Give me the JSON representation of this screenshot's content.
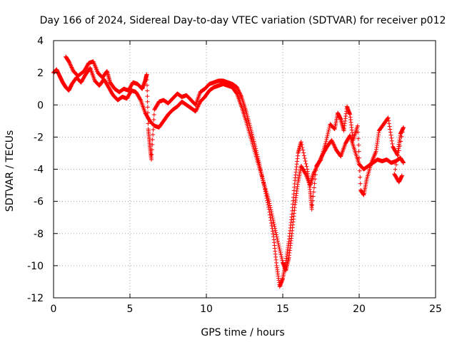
{
  "chart_data": {
    "type": "scatter",
    "title": "Day 166 of 2024, Sidereal Day-to-day VTEC variation (SDTVAR) for receiver p012",
    "xlabel": "GPS time / hours",
    "ylabel": "SDTVAR / TECUs",
    "xlim": [
      0,
      25
    ],
    "ylim": [
      -12,
      4
    ],
    "x_ticks": [
      "0",
      "5",
      "10",
      "15",
      "20",
      "25"
    ],
    "y_ticks": [
      "-12",
      "-10",
      "-8",
      "-6",
      "-4",
      "-2",
      "0",
      "2",
      "4"
    ],
    "grid": true,
    "marker": "+",
    "color": "#ff0000",
    "series": [
      {
        "name": "",
        "points": [
          [
            0.0,
            2.0
          ],
          [
            0.2,
            2.2
          ],
          [
            0.4,
            1.8
          ],
          [
            0.6,
            1.4
          ],
          [
            0.8,
            1.1
          ],
          [
            1.0,
            0.9
          ],
          [
            1.2,
            1.3
          ],
          [
            1.5,
            1.7
          ],
          [
            1.8,
            1.4
          ],
          [
            2.1,
            1.9
          ],
          [
            2.4,
            2.3
          ],
          [
            2.7,
            1.5
          ],
          [
            3.0,
            1.2
          ],
          [
            3.3,
            1.6
          ],
          [
            3.6,
            1.1
          ],
          [
            3.9,
            0.6
          ],
          [
            4.2,
            0.3
          ],
          [
            4.5,
            0.5
          ],
          [
            4.8,
            0.4
          ],
          [
            5.1,
            0.9
          ],
          [
            5.4,
            0.8
          ],
          [
            5.7,
            0.3
          ],
          [
            6.0,
            -0.5
          ],
          [
            6.3,
            -1.0
          ],
          [
            6.6,
            -1.3
          ],
          [
            6.9,
            -1.4
          ],
          [
            7.2,
            -1.0
          ],
          [
            7.5,
            -0.6
          ],
          [
            7.8,
            -0.3
          ],
          [
            8.1,
            -0.1
          ],
          [
            8.4,
            0.2
          ],
          [
            8.7,
            0.0
          ],
          [
            9.0,
            -0.2
          ],
          [
            9.3,
            -0.4
          ],
          [
            9.6,
            0.2
          ],
          [
            9.9,
            0.5
          ],
          [
            10.2,
            0.9
          ],
          [
            10.5,
            1.1
          ],
          [
            10.8,
            1.2
          ],
          [
            11.1,
            1.3
          ],
          [
            11.4,
            1.2
          ],
          [
            11.7,
            1.1
          ],
          [
            12.0,
            0.7
          ],
          [
            12.3,
            -0.1
          ],
          [
            12.6,
            -1.0
          ],
          [
            12.9,
            -2.0
          ],
          [
            13.2,
            -3.0
          ],
          [
            13.5,
            -4.0
          ],
          [
            13.8,
            -5.0
          ],
          [
            14.1,
            -6.0
          ],
          [
            14.4,
            -7.3
          ],
          [
            14.7,
            -8.6
          ],
          [
            15.0,
            -9.8
          ],
          [
            15.2,
            -10.3
          ],
          [
            15.4,
            -9.5
          ],
          [
            15.6,
            -8.0
          ],
          [
            15.8,
            -6.2
          ],
          [
            16.0,
            -4.8
          ],
          [
            16.2,
            -3.8
          ],
          [
            16.5,
            -4.3
          ],
          [
            16.8,
            -5.0
          ],
          [
            17.0,
            -4.3
          ],
          [
            17.3,
            -3.7
          ],
          [
            17.6,
            -3.1
          ],
          [
            17.9,
            -2.6
          ],
          [
            18.2,
            -2.2
          ],
          [
            18.5,
            -2.8
          ],
          [
            18.8,
            -3.2
          ],
          [
            19.1,
            -2.4
          ],
          [
            19.4,
            -1.9
          ],
          [
            19.7,
            -2.8
          ],
          [
            20.0,
            -3.7
          ],
          [
            20.3,
            -4.0
          ],
          [
            20.6,
            -3.8
          ],
          [
            20.9,
            -3.6
          ],
          [
            21.2,
            -3.4
          ],
          [
            21.5,
            -3.5
          ],
          [
            21.8,
            -3.4
          ],
          [
            22.1,
            -3.6
          ],
          [
            22.4,
            -3.5
          ],
          [
            22.7,
            -3.3
          ],
          [
            22.9,
            -3.6
          ]
        ]
      },
      {
        "name": "",
        "points": [
          [
            0.8,
            3.0
          ],
          [
            1.0,
            2.7
          ],
          [
            1.3,
            2.1
          ],
          [
            1.6,
            1.8
          ],
          [
            2.0,
            2.1
          ],
          [
            2.3,
            2.6
          ],
          [
            2.6,
            2.7
          ],
          [
            2.9,
            2.0
          ],
          [
            3.2,
            1.7
          ],
          [
            3.5,
            2.1
          ],
          [
            3.7,
            1.4
          ],
          [
            4.0,
            1.0
          ],
          [
            4.3,
            0.8
          ],
          [
            4.6,
            1.0
          ],
          [
            4.9,
            0.9
          ],
          [
            5.2,
            1.4
          ],
          [
            5.5,
            1.3
          ],
          [
            5.8,
            1.0
          ],
          [
            6.0,
            1.5
          ],
          [
            6.1,
            1.9
          ],
          [
            6.2,
            -1.5
          ],
          [
            6.3,
            -2.5
          ],
          [
            6.4,
            -3.4
          ],
          [
            6.6,
            -0.3
          ],
          [
            6.9,
            0.2
          ],
          [
            7.2,
            0.3
          ],
          [
            7.5,
            0.1
          ],
          [
            7.8,
            0.4
          ],
          [
            8.1,
            0.7
          ],
          [
            8.4,
            0.5
          ],
          [
            8.7,
            0.6
          ],
          [
            9.0,
            0.3
          ],
          [
            9.3,
            0.0
          ],
          [
            9.6,
            0.8
          ],
          [
            9.9,
            1.0
          ],
          [
            10.2,
            1.3
          ],
          [
            10.5,
            1.4
          ],
          [
            10.8,
            1.5
          ],
          [
            11.1,
            1.5
          ],
          [
            11.4,
            1.4
          ],
          [
            11.7,
            1.3
          ],
          [
            12.0,
            1.1
          ],
          [
            12.3,
            0.5
          ],
          [
            12.6,
            -0.4
          ],
          [
            12.9,
            -1.5
          ],
          [
            13.2,
            -2.6
          ],
          [
            13.5,
            -3.8
          ],
          [
            13.8,
            -5.1
          ],
          [
            14.1,
            -6.5
          ],
          [
            14.4,
            -8.2
          ],
          [
            14.6,
            -10.0
          ],
          [
            14.8,
            -11.3
          ],
          [
            15.0,
            -10.8
          ],
          [
            15.2,
            -9.8
          ],
          [
            15.4,
            -8.5
          ],
          [
            15.6,
            -6.8
          ],
          [
            15.8,
            -4.7
          ],
          [
            16.0,
            -3.0
          ],
          [
            16.2,
            -2.3
          ],
          [
            16.6,
            -4.0
          ],
          [
            16.8,
            -5.4
          ],
          [
            16.9,
            -6.5
          ],
          [
            17.2,
            -3.8
          ],
          [
            17.5,
            -3.4
          ],
          [
            17.8,
            -2.4
          ],
          [
            18.1,
            -1.2
          ],
          [
            18.4,
            -1.5
          ],
          [
            18.6,
            -0.5
          ],
          [
            18.8,
            -0.9
          ],
          [
            19.0,
            -1.6
          ],
          [
            19.2,
            -0.1
          ],
          [
            19.4,
            -0.6
          ],
          [
            19.6,
            -2.2
          ],
          [
            19.9,
            -1.3
          ],
          [
            20.1,
            -5.3
          ],
          [
            20.3,
            -5.6
          ],
          [
            20.5,
            -4.6
          ],
          [
            20.8,
            -3.6
          ],
          [
            21.1,
            -2.9
          ],
          [
            21.3,
            -1.6
          ],
          [
            21.6,
            -1.2
          ],
          [
            21.9,
            -0.8
          ],
          [
            22.2,
            -2.6
          ],
          [
            22.5,
            -3.1
          ],
          [
            22.7,
            -1.8
          ],
          [
            22.9,
            -1.4
          ],
          [
            22.3,
            -4.3
          ],
          [
            22.6,
            -4.8
          ],
          [
            22.8,
            -4.4
          ]
        ]
      }
    ]
  }
}
